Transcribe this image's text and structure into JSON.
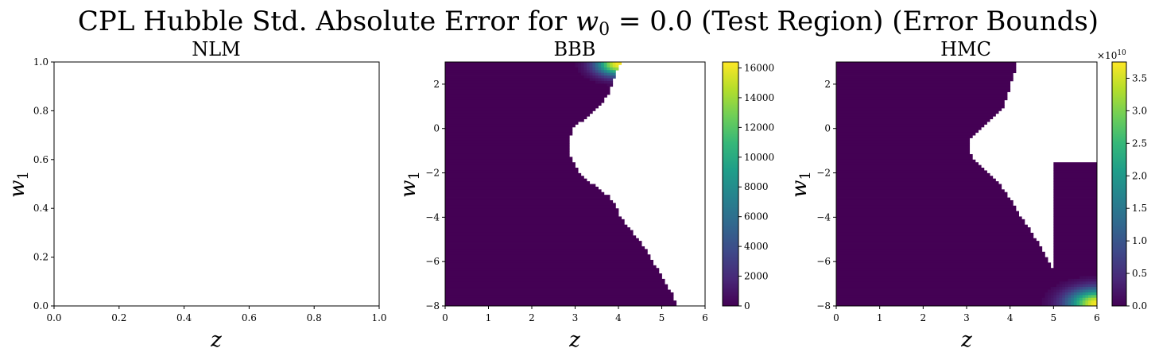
{
  "figure": {
    "suptitle_prefix": "CPL Hubble Std. Absolute Error for ",
    "suptitle_math": "w",
    "suptitle_sub": "0",
    "suptitle_suffix": " = 0.0 (Test Region) (Error Bounds)"
  },
  "colors": {
    "viridis": [
      "#440154",
      "#482878",
      "#3e4989",
      "#31688e",
      "#26828e",
      "#1f9e89",
      "#35b779",
      "#6ece58",
      "#b5de2b",
      "#fde725"
    ],
    "masked": "#ffffff",
    "frame": "#000000"
  },
  "chart_data": [
    {
      "type": "heatmap",
      "title": "NLM",
      "xlabel": "z",
      "ylabel": "w",
      "ylabel_sub": "1",
      "xlim": [
        0,
        1
      ],
      "ylim": [
        0,
        1
      ],
      "xticks": [
        "0.0",
        "0.2",
        "0.4",
        "0.6",
        "0.8",
        "1.0"
      ],
      "yticks": [
        "0.0",
        "0.2",
        "0.4",
        "0.6",
        "0.8",
        "1.0"
      ],
      "empty": true
    },
    {
      "type": "heatmap",
      "title": "BBB",
      "xlabel": "z",
      "ylabel": "w",
      "ylabel_sub": "1",
      "xlim": [
        0,
        6
      ],
      "ylim": [
        -8,
        3
      ],
      "xticks": [
        "0",
        "1",
        "2",
        "3",
        "4",
        "5",
        "6"
      ],
      "yticks": [
        "−8",
        "−6",
        "−4",
        "−2",
        "0",
        "2"
      ],
      "colorbar": {
        "min": 0,
        "max": 16400,
        "ticks": [
          "0",
          "2000",
          "4000",
          "6000",
          "8000",
          "10000",
          "12000",
          "14000",
          "16000"
        ],
        "exponent": ""
      },
      "mask_boundary_w1": [
        3.0,
        2.5,
        2.0,
        1.5,
        1.0,
        0.5,
        0.0,
        -0.5,
        -1.0,
        -1.5,
        -2.0,
        -2.5,
        -3.0,
        -3.5,
        -4.0,
        -4.5,
        -5.0,
        -5.5,
        -6.0,
        -6.5,
        -7.0,
        -7.5,
        -8.0
      ],
      "mask_boundary_z": [
        4.05,
        3.95,
        3.85,
        3.75,
        3.55,
        3.25,
        2.95,
        2.85,
        2.85,
        2.95,
        3.1,
        3.4,
        3.75,
        3.95,
        4.05,
        4.25,
        4.45,
        4.65,
        4.8,
        4.95,
        5.1,
        5.25,
        5.35
      ],
      "hotspot": {
        "z": 4.0,
        "w1": 2.9,
        "peak": 16400,
        "spread": 0.35
      }
    },
    {
      "type": "heatmap",
      "title": "HMC",
      "xlabel": "z",
      "ylabel": "w",
      "ylabel_sub": "1",
      "xlim": [
        0,
        6
      ],
      "ylim": [
        -8,
        3
      ],
      "xticks": [
        "0",
        "1",
        "2",
        "3",
        "4",
        "5",
        "6"
      ],
      "yticks": [
        "−8",
        "−6",
        "−4",
        "−2",
        "0",
        "2"
      ],
      "colorbar": {
        "min": 0,
        "max": 3.75,
        "ticks": [
          "0.0",
          "0.5",
          "1.0",
          "1.5",
          "2.0",
          "2.5",
          "3.0",
          "3.5"
        ],
        "exponent": "×10",
        "exponent_power": "10"
      },
      "mask_left_w1": [
        3.0,
        2.5,
        2.0,
        1.5,
        1.0,
        0.5,
        0.0,
        -0.5,
        -1.0,
        -1.5,
        -2.0,
        -2.5,
        -3.0,
        -3.5,
        -4.0,
        -4.5,
        -5.0,
        -5.5,
        -6.0,
        -6.5,
        -7.0
      ],
      "mask_left_z": [
        4.1,
        4.1,
        4.0,
        3.95,
        3.85,
        3.6,
        3.3,
        3.05,
        3.05,
        3.2,
        3.5,
        3.75,
        3.95,
        4.1,
        4.25,
        4.45,
        4.6,
        4.75,
        4.9,
        5.0,
        5.0
      ],
      "mask_right_w1": [
        -7.0,
        -6.5,
        -6.0,
        -5.5,
        -5.0,
        -4.5,
        -4.0,
        -3.5,
        -3.0,
        -2.5,
        -2.0,
        -1.5
      ],
      "mask_right_z": [
        5.0,
        5.05,
        5.05,
        5.15,
        5.35,
        5.5,
        5.55,
        5.65,
        5.75,
        5.85,
        5.95,
        6.0
      ],
      "hotspot": {
        "z": 6.0,
        "w1": -7.9,
        "peak": 3.75,
        "spread": 0.45
      }
    }
  ]
}
